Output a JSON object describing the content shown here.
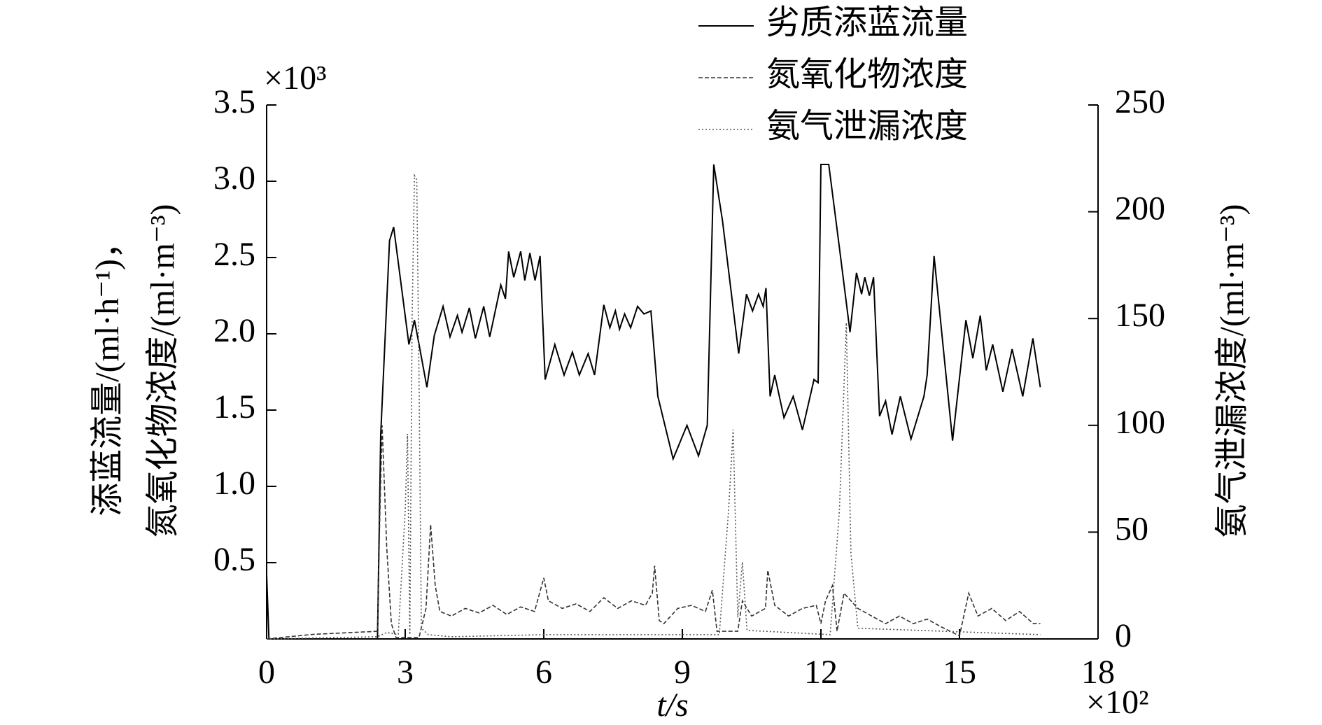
{
  "chart_data": {
    "type": "line",
    "x_label": "t/s",
    "x_multiplier": "×10²",
    "y_multiplier": "×10³",
    "y_label": [
      "添蓝流量/(ml·h⁻¹)，",
      "氮氧化物浓度/(ml·m⁻³)"
    ],
    "y2_label": "氨气泄漏浓度/(ml·m⁻³)",
    "xlim": [
      0,
      18
    ],
    "xticks": [
      0,
      3,
      6,
      9,
      12,
      15,
      18
    ],
    "ylim": [
      0,
      3.5
    ],
    "yticks": [
      0.5,
      {
        "value": 1,
        "label": "1.0"
      },
      1.5,
      {
        "value": 2,
        "label": "2.0"
      },
      2.5,
      {
        "value": 3,
        "label": "3.0"
      },
      3.5
    ],
    "y2lim": [
      0,
      250
    ],
    "y2ticks": [
      0,
      50,
      100,
      150,
      200,
      250
    ],
    "series": [
      {
        "name": "劣质添蓝流量",
        "color": "#000000",
        "dash": "solid",
        "x": [
          0,
          0.05,
          2.4,
          2.47,
          2.66,
          2.75,
          3.08,
          3.2,
          3.3,
          3.47,
          3.63,
          3.82,
          3.97,
          4.13,
          4.23,
          4.39,
          4.52,
          4.7,
          4.83,
          5.07,
          5.17,
          5.24,
          5.35,
          5.5,
          5.59,
          5.7,
          5.81,
          5.92,
          6.03,
          6.24,
          6.44,
          6.62,
          6.77,
          6.96,
          7.1,
          7.3,
          7.43,
          7.55,
          7.64,
          7.75,
          7.88,
          8.03,
          8.17,
          8.32,
          8.47,
          8.8,
          9.1,
          9.35,
          9.54,
          9.68,
          9.87,
          10.22,
          10.39,
          10.52,
          10.65,
          10.75,
          10.81,
          10.9,
          11.0,
          11.2,
          11.4,
          11.6,
          11.85,
          11.94,
          12.0,
          12.17,
          12.41,
          12.63,
          12.77,
          12.88,
          12.95,
          13.05,
          13.14,
          13.27,
          13.4,
          13.54,
          13.72,
          13.95,
          14.23,
          14.3,
          14.45,
          14.85,
          15.14,
          15.29,
          15.45,
          15.58,
          15.72,
          15.94,
          16.14,
          16.37,
          16.59,
          16.75
        ],
        "values": [
          0.42,
          0,
          0,
          1.34,
          2.61,
          2.7,
          1.93,
          2.09,
          1.93,
          1.65,
          1.99,
          2.18,
          1.98,
          2.12,
          2.01,
          2.17,
          1.97,
          2.18,
          1.98,
          2.32,
          2.23,
          2.54,
          2.37,
          2.54,
          2.35,
          2.53,
          2.35,
          2.51,
          1.7,
          1.93,
          1.73,
          1.88,
          1.73,
          1.87,
          1.73,
          2.19,
          2.04,
          2.15,
          2.03,
          2.13,
          2.04,
          2.18,
          2.13,
          2.15,
          1.59,
          1.18,
          1.4,
          1.2,
          1.4,
          3.11,
          2.74,
          1.87,
          2.26,
          2.15,
          2.26,
          2.18,
          2.3,
          1.59,
          1.73,
          1.45,
          1.59,
          1.37,
          1.7,
          1.68,
          3.11,
          3.11,
          2.54,
          2.01,
          2.4,
          2.26,
          2.37,
          2.25,
          2.37,
          1.46,
          1.56,
          1.34,
          1.59,
          1.31,
          1.59,
          1.73,
          2.51,
          1.3,
          2.09,
          1.84,
          2.12,
          1.76,
          1.93,
          1.62,
          1.9,
          1.59,
          1.97,
          1.65
        ]
      },
      {
        "name": "氮氧化物浓度",
        "color": "#333333",
        "dash": "dashed",
        "x": [
          0,
          1.0,
          2.4,
          2.45,
          2.5,
          2.6,
          2.7,
          2.8,
          3.3,
          3.45,
          3.55,
          3.65,
          3.75,
          4.0,
          4.3,
          4.6,
          4.9,
          5.2,
          5.5,
          5.8,
          6.0,
          6.1,
          6.4,
          6.7,
          7.0,
          7.3,
          7.6,
          7.9,
          8.2,
          8.35,
          8.4,
          8.5,
          8.6,
          8.9,
          9.2,
          9.5,
          9.65,
          9.75,
          9.8,
          10.2,
          10.3,
          10.5,
          10.8,
          10.85,
          11.0,
          11.3,
          11.6,
          11.9,
          12.0,
          12.1,
          12.25,
          12.35,
          12.5,
          12.8,
          13.1,
          13.4,
          13.7,
          14.0,
          14.3,
          14.6,
          15.0,
          15.2,
          15.4,
          15.7,
          16.0,
          16.3,
          16.6,
          16.75
        ],
        "values": [
          0,
          0.03,
          0.05,
          0.8,
          1.4,
          0.6,
          0.1,
          0.01,
          0.01,
          0.2,
          0.75,
          0.35,
          0.18,
          0.15,
          0.2,
          0.17,
          0.22,
          0.16,
          0.21,
          0.18,
          0.4,
          0.25,
          0.2,
          0.23,
          0.18,
          0.27,
          0.2,
          0.25,
          0.22,
          0.3,
          0.48,
          0.12,
          0.1,
          0.2,
          0.22,
          0.18,
          0.32,
          0.05,
          0.05,
          0.05,
          0.25,
          0.15,
          0.2,
          0.45,
          0.22,
          0.15,
          0.2,
          0.22,
          0.1,
          0.25,
          0.35,
          0.05,
          0.3,
          0.2,
          0.15,
          0.1,
          0.15,
          0.1,
          0.13,
          0.08,
          0.02,
          0.3,
          0.15,
          0.2,
          0.12,
          0.18,
          0.1,
          0.1
        ]
      },
      {
        "name": "氨气泄漏浓度",
        "color": "#555555",
        "dash": "dotted",
        "axis": "y2",
        "x": [
          0,
          2.4,
          2.6,
          2.85,
          3.0,
          3.05,
          3.1,
          3.15,
          3.2,
          3.25,
          3.3,
          3.35,
          3.5,
          4.0,
          6.0,
          9.8,
          10.0,
          10.1,
          10.2,
          10.3,
          10.4,
          12.2,
          12.4,
          12.55,
          12.65,
          12.8,
          16.75
        ],
        "values": [
          0,
          1,
          3,
          2,
          60,
          96,
          2,
          150,
          217,
          215,
          120,
          5,
          2,
          1,
          2,
          2,
          60,
          98,
          10,
          36,
          4,
          2,
          60,
          148,
          40,
          5,
          2
        ]
      }
    ]
  }
}
